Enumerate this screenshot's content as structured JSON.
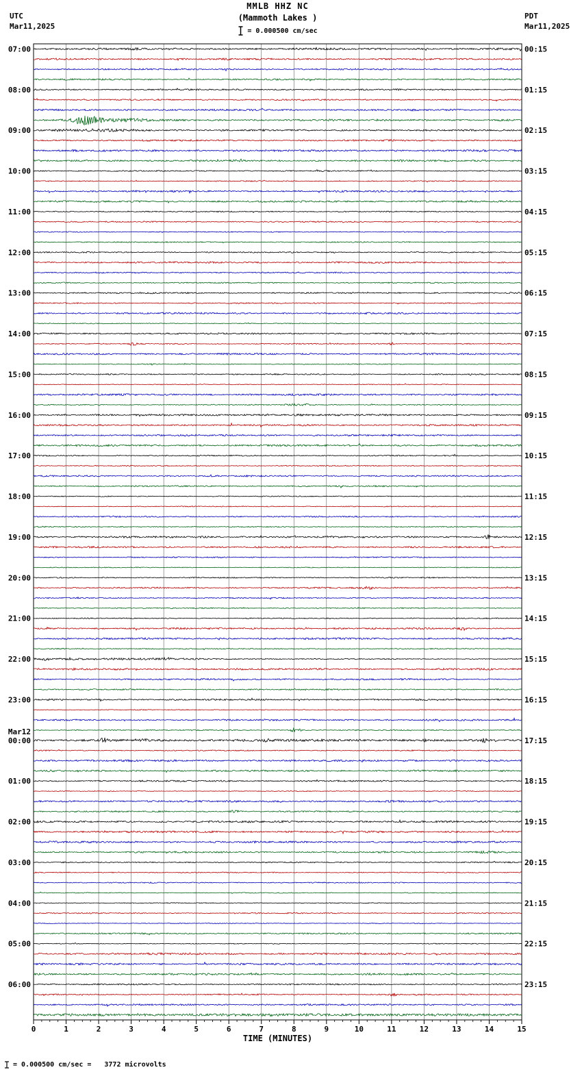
{
  "header": {
    "station": "MMLB HHZ NC",
    "location": "(Mammoth Lakes )",
    "scale_text": "= 0.000500 cm/sec",
    "left_tz": "UTC",
    "left_date": "Mar11,2025",
    "right_tz": "PDT",
    "right_date": "Mar11,2025"
  },
  "footer": {
    "scale_text": "= 0.000500 cm/sec =",
    "microvolts_text": "3772 microvolts"
  },
  "chart_data": {
    "type": "line",
    "subtype": "helicorder-seismogram",
    "title": "MMLB HHZ NC",
    "subtitle": "(Mammoth Lakes )",
    "xlabel": "TIME (MINUTES)",
    "x_range": [
      0,
      15
    ],
    "x_ticks": [
      "0",
      "1",
      "2",
      "3",
      "4",
      "5",
      "6",
      "7",
      "8",
      "9",
      "10",
      "11",
      "12",
      "13",
      "14",
      "15"
    ],
    "minutes_per_row": 15,
    "rows_per_hour": 4,
    "row_colors_cycle": [
      "#000000",
      "#b40000",
      "#0000b4",
      "#006414"
    ],
    "grid_color": "#606060",
    "frame_color": "#000000",
    "amplitude_scale_cm_per_sec": 0.0005,
    "amplitude_scale_microvolts": 3772,
    "left_axis_hour_labels": [
      "07:00",
      "08:00",
      "09:00",
      "10:00",
      "11:00",
      "12:00",
      "13:00",
      "14:00",
      "15:00",
      "16:00",
      "17:00",
      "18:00",
      "19:00",
      "20:00",
      "21:00",
      "22:00",
      "23:00",
      "00:00",
      "01:00",
      "02:00",
      "03:00",
      "04:00",
      "05:00",
      "06:00"
    ],
    "mar12_label": "Mar12",
    "mar12_index": 17,
    "right_axis_labels": [
      "00:15",
      "01:15",
      "02:15",
      "03:15",
      "04:15",
      "05:15",
      "06:15",
      "07:15",
      "08:15",
      "09:15",
      "10:15",
      "11:15",
      "12:15",
      "13:15",
      "14:15",
      "15:15",
      "16:15",
      "17:15",
      "18:15",
      "19:15",
      "20:15",
      "21:15",
      "22:15",
      "23:15"
    ],
    "events": [
      {
        "row": 7,
        "minute": 1.6,
        "amplitude": 6.0,
        "sigma": 0.3,
        "note": "large burst, green trace 08:45 UTC"
      },
      {
        "row": 7,
        "minute": 2.5,
        "amplitude": 1.6,
        "sigma": 0.7
      },
      {
        "row": 8,
        "minute": 2.2,
        "amplitude": 1.2,
        "sigma": 0.9
      },
      {
        "row": 29,
        "minute": 3.05,
        "amplitude": 2.5,
        "sigma": 0.07
      },
      {
        "row": 29,
        "minute": 11.0,
        "amplitude": 1.8,
        "sigma": 0.06
      },
      {
        "row": 35,
        "minute": 8.2,
        "amplitude": 1.5,
        "sigma": 0.3
      },
      {
        "row": 36,
        "minute": 7.5,
        "amplitude": 0.7,
        "sigma": 6.0
      },
      {
        "row": 48,
        "minute": 13.95,
        "amplitude": 3.0,
        "sigma": 0.06
      },
      {
        "row": 53,
        "minute": 10.3,
        "amplitude": 1.5,
        "sigma": 0.12
      },
      {
        "row": 57,
        "minute": 13.2,
        "amplitude": 2.0,
        "sigma": 0.07
      },
      {
        "row": 60,
        "minute": 2.0,
        "amplitude": 0.9,
        "sigma": 2.5
      },
      {
        "row": 60,
        "minute": 0.4,
        "amplitude": 1.5,
        "sigma": 0.1
      },
      {
        "row": 60,
        "minute": 4.1,
        "amplitude": 1.5,
        "sigma": 0.1
      },
      {
        "row": 67,
        "minute": 8.05,
        "amplitude": 4.0,
        "sigma": 0.1,
        "note": "green spike 23:45 UTC"
      },
      {
        "row": 68,
        "minute": 7.5,
        "amplitude": 0.8,
        "sigma": 7.0,
        "note": "elevated noise 00:00 Mar12"
      },
      {
        "row": 68,
        "minute": 2.15,
        "amplitude": 3.0,
        "sigma": 0.07
      },
      {
        "row": 68,
        "minute": 3.35,
        "amplitude": 3.2,
        "sigma": 0.07
      },
      {
        "row": 68,
        "minute": 7.15,
        "amplitude": 1.5,
        "sigma": 0.07
      },
      {
        "row": 68,
        "minute": 12.0,
        "amplitude": 1.8,
        "sigma": 0.06
      },
      {
        "row": 68,
        "minute": 13.85,
        "amplitude": 2.0,
        "sigma": 0.06
      },
      {
        "row": 75,
        "minute": 6.15,
        "amplitude": 2.0,
        "sigma": 0.09
      },
      {
        "row": 79,
        "minute": 13.9,
        "amplitude": 1.3,
        "sigma": 0.3
      },
      {
        "row": 93,
        "minute": 11.05,
        "amplitude": 2.0,
        "sigma": 0.07
      },
      {
        "row": 95,
        "minute": 7.5,
        "amplitude": 0.9,
        "sigma": 7.0
      }
    ]
  }
}
